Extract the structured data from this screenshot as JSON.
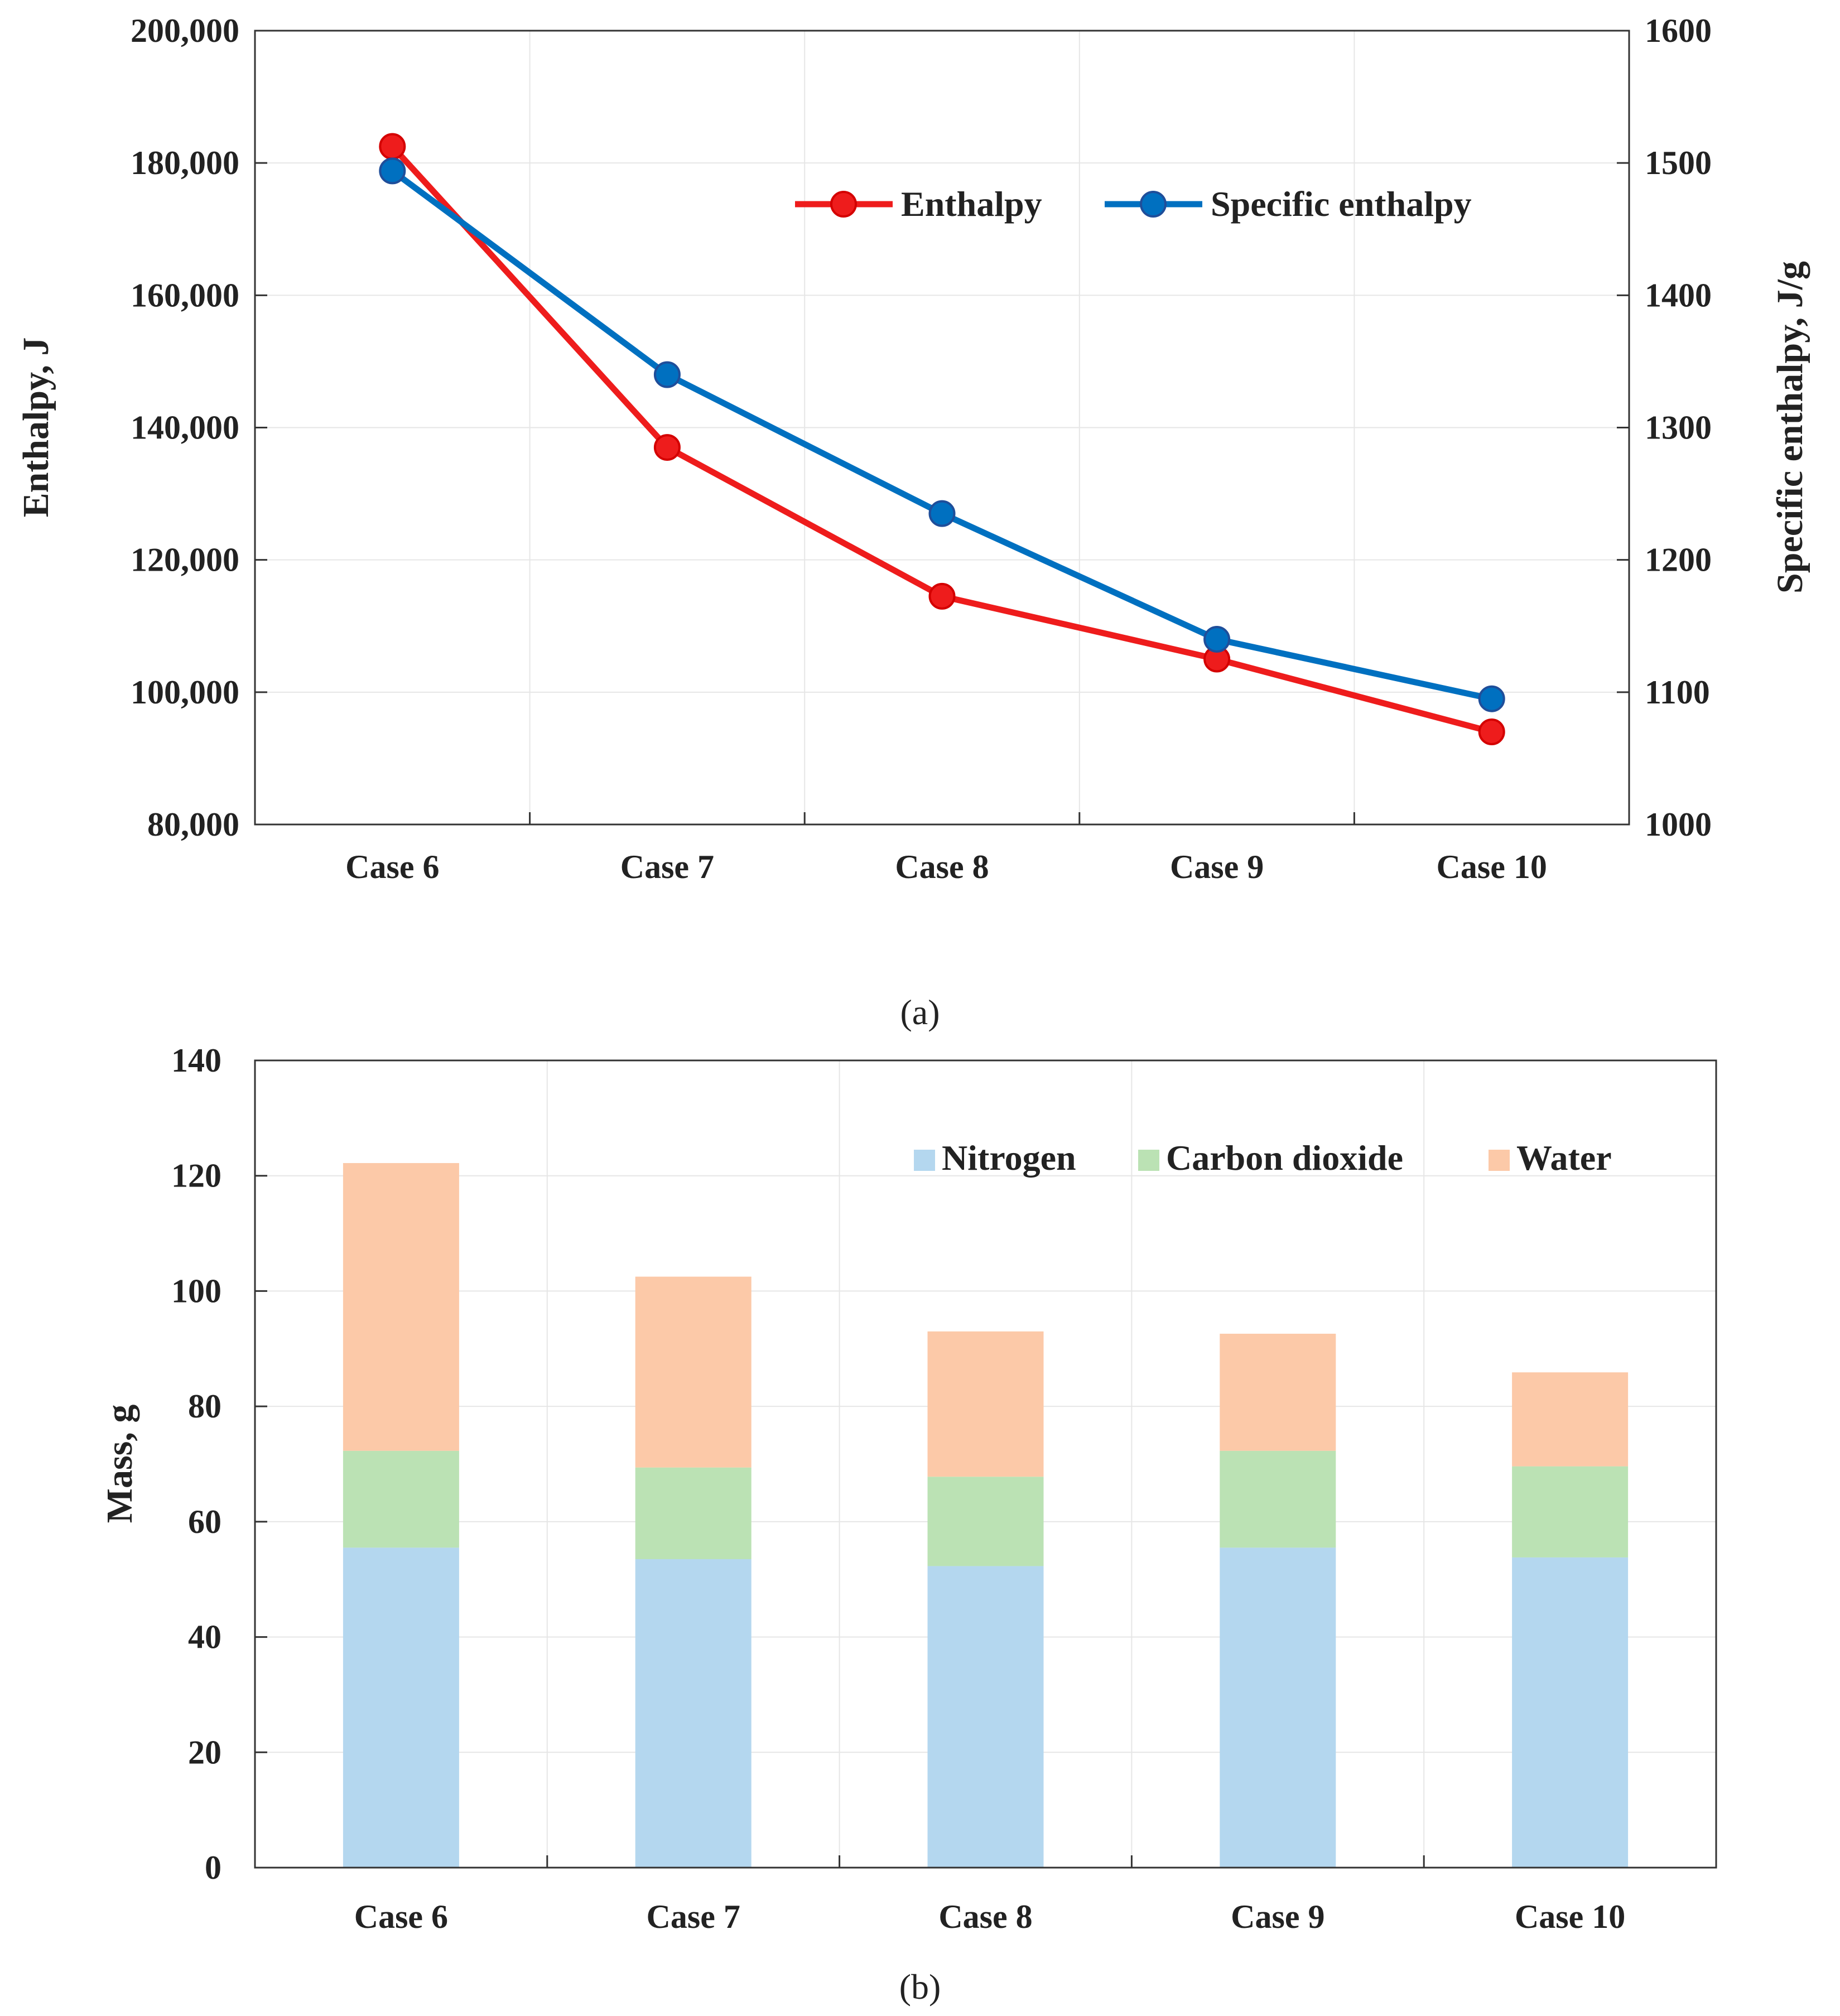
{
  "chart_data": [
    {
      "type": "line",
      "categories": [
        "Case 6",
        "Case 7",
        "Case 8",
        "Case 9",
        "Case 10"
      ],
      "series": [
        {
          "name": "Enthalpy",
          "axis": "left",
          "color": "#ee1c1c",
          "values": [
            182500,
            137000,
            114500,
            105000,
            94000
          ]
        },
        {
          "name": "Specific enthalpy",
          "axis": "right",
          "color": "#0070c0",
          "values": [
            1494,
            1340,
            1235,
            1140,
            1095
          ]
        }
      ],
      "ylabel": "Enthalpy, J",
      "ylabel_right": "Specific enthalpy, J/g",
      "ylim": [
        80000,
        200000
      ],
      "ylim_right": [
        1000,
        1600
      ],
      "yticks": [
        "80,000",
        "100,000",
        "120,000",
        "140,000",
        "160,000",
        "180,000",
        "200,000"
      ],
      "yticks_right": [
        "1000",
        "1100",
        "1200",
        "1300",
        "1400",
        "1500",
        "1600"
      ],
      "grid": true,
      "legend": "top-right",
      "caption": "(a)"
    },
    {
      "type": "bar",
      "stacked": true,
      "categories": [
        "Case 6",
        "Case 7",
        "Case 8",
        "Case 9",
        "Case 10"
      ],
      "series": [
        {
          "name": "Nitrogen",
          "color": "#b4d7ef",
          "values": [
            55.5,
            53.5,
            52.3,
            55.5,
            53.8
          ]
        },
        {
          "name": "Carbon dioxide",
          "color": "#bbe2b4",
          "values": [
            16.8,
            15.9,
            15.5,
            16.8,
            15.8
          ]
        },
        {
          "name": "Water",
          "color": "#fcc9a8",
          "values": [
            49.9,
            33.1,
            25.2,
            20.3,
            16.3
          ]
        }
      ],
      "ylabel": "Mass, g",
      "ylim": [
        0,
        140
      ],
      "yticks": [
        "0",
        "20",
        "40",
        "60",
        "80",
        "100",
        "120",
        "140"
      ],
      "grid": true,
      "legend": "top-right",
      "caption": "(b)"
    }
  ]
}
